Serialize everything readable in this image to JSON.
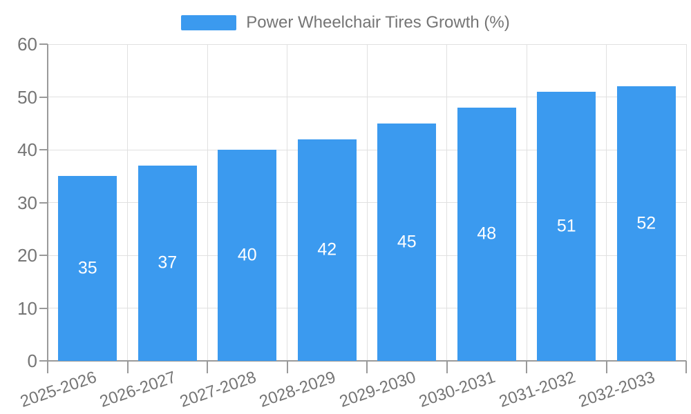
{
  "legend": {
    "label": "Power Wheelchair Tires Growth (%)"
  },
  "colors": {
    "bar": "#3B9AEF",
    "grid": "#E0E0E0",
    "axis": "#999999",
    "label_text": "#757575",
    "value_text": "#FFFFFF",
    "background": "#FFFFFF"
  },
  "chart_data": {
    "type": "bar",
    "title": "Power Wheelchair Tires Growth (%)",
    "legend": [
      "Power Wheelchair Tires Growth (%)"
    ],
    "legend_position": "top-center",
    "categories": [
      "2025-2026",
      "2026-2027",
      "2027-2028",
      "2028-2029",
      "2029-2030",
      "2030-2031",
      "2031-2032",
      "2032-2033"
    ],
    "values": [
      35,
      37,
      40,
      42,
      45,
      48,
      51,
      52
    ],
    "xlabel": "",
    "ylabel": "",
    "ylim": [
      0,
      60
    ],
    "yticks": [
      0,
      10,
      20,
      30,
      40,
      50,
      60
    ],
    "grid": true,
    "value_labels": "inside-middle-white",
    "x_tick_rotation_deg": -19
  }
}
